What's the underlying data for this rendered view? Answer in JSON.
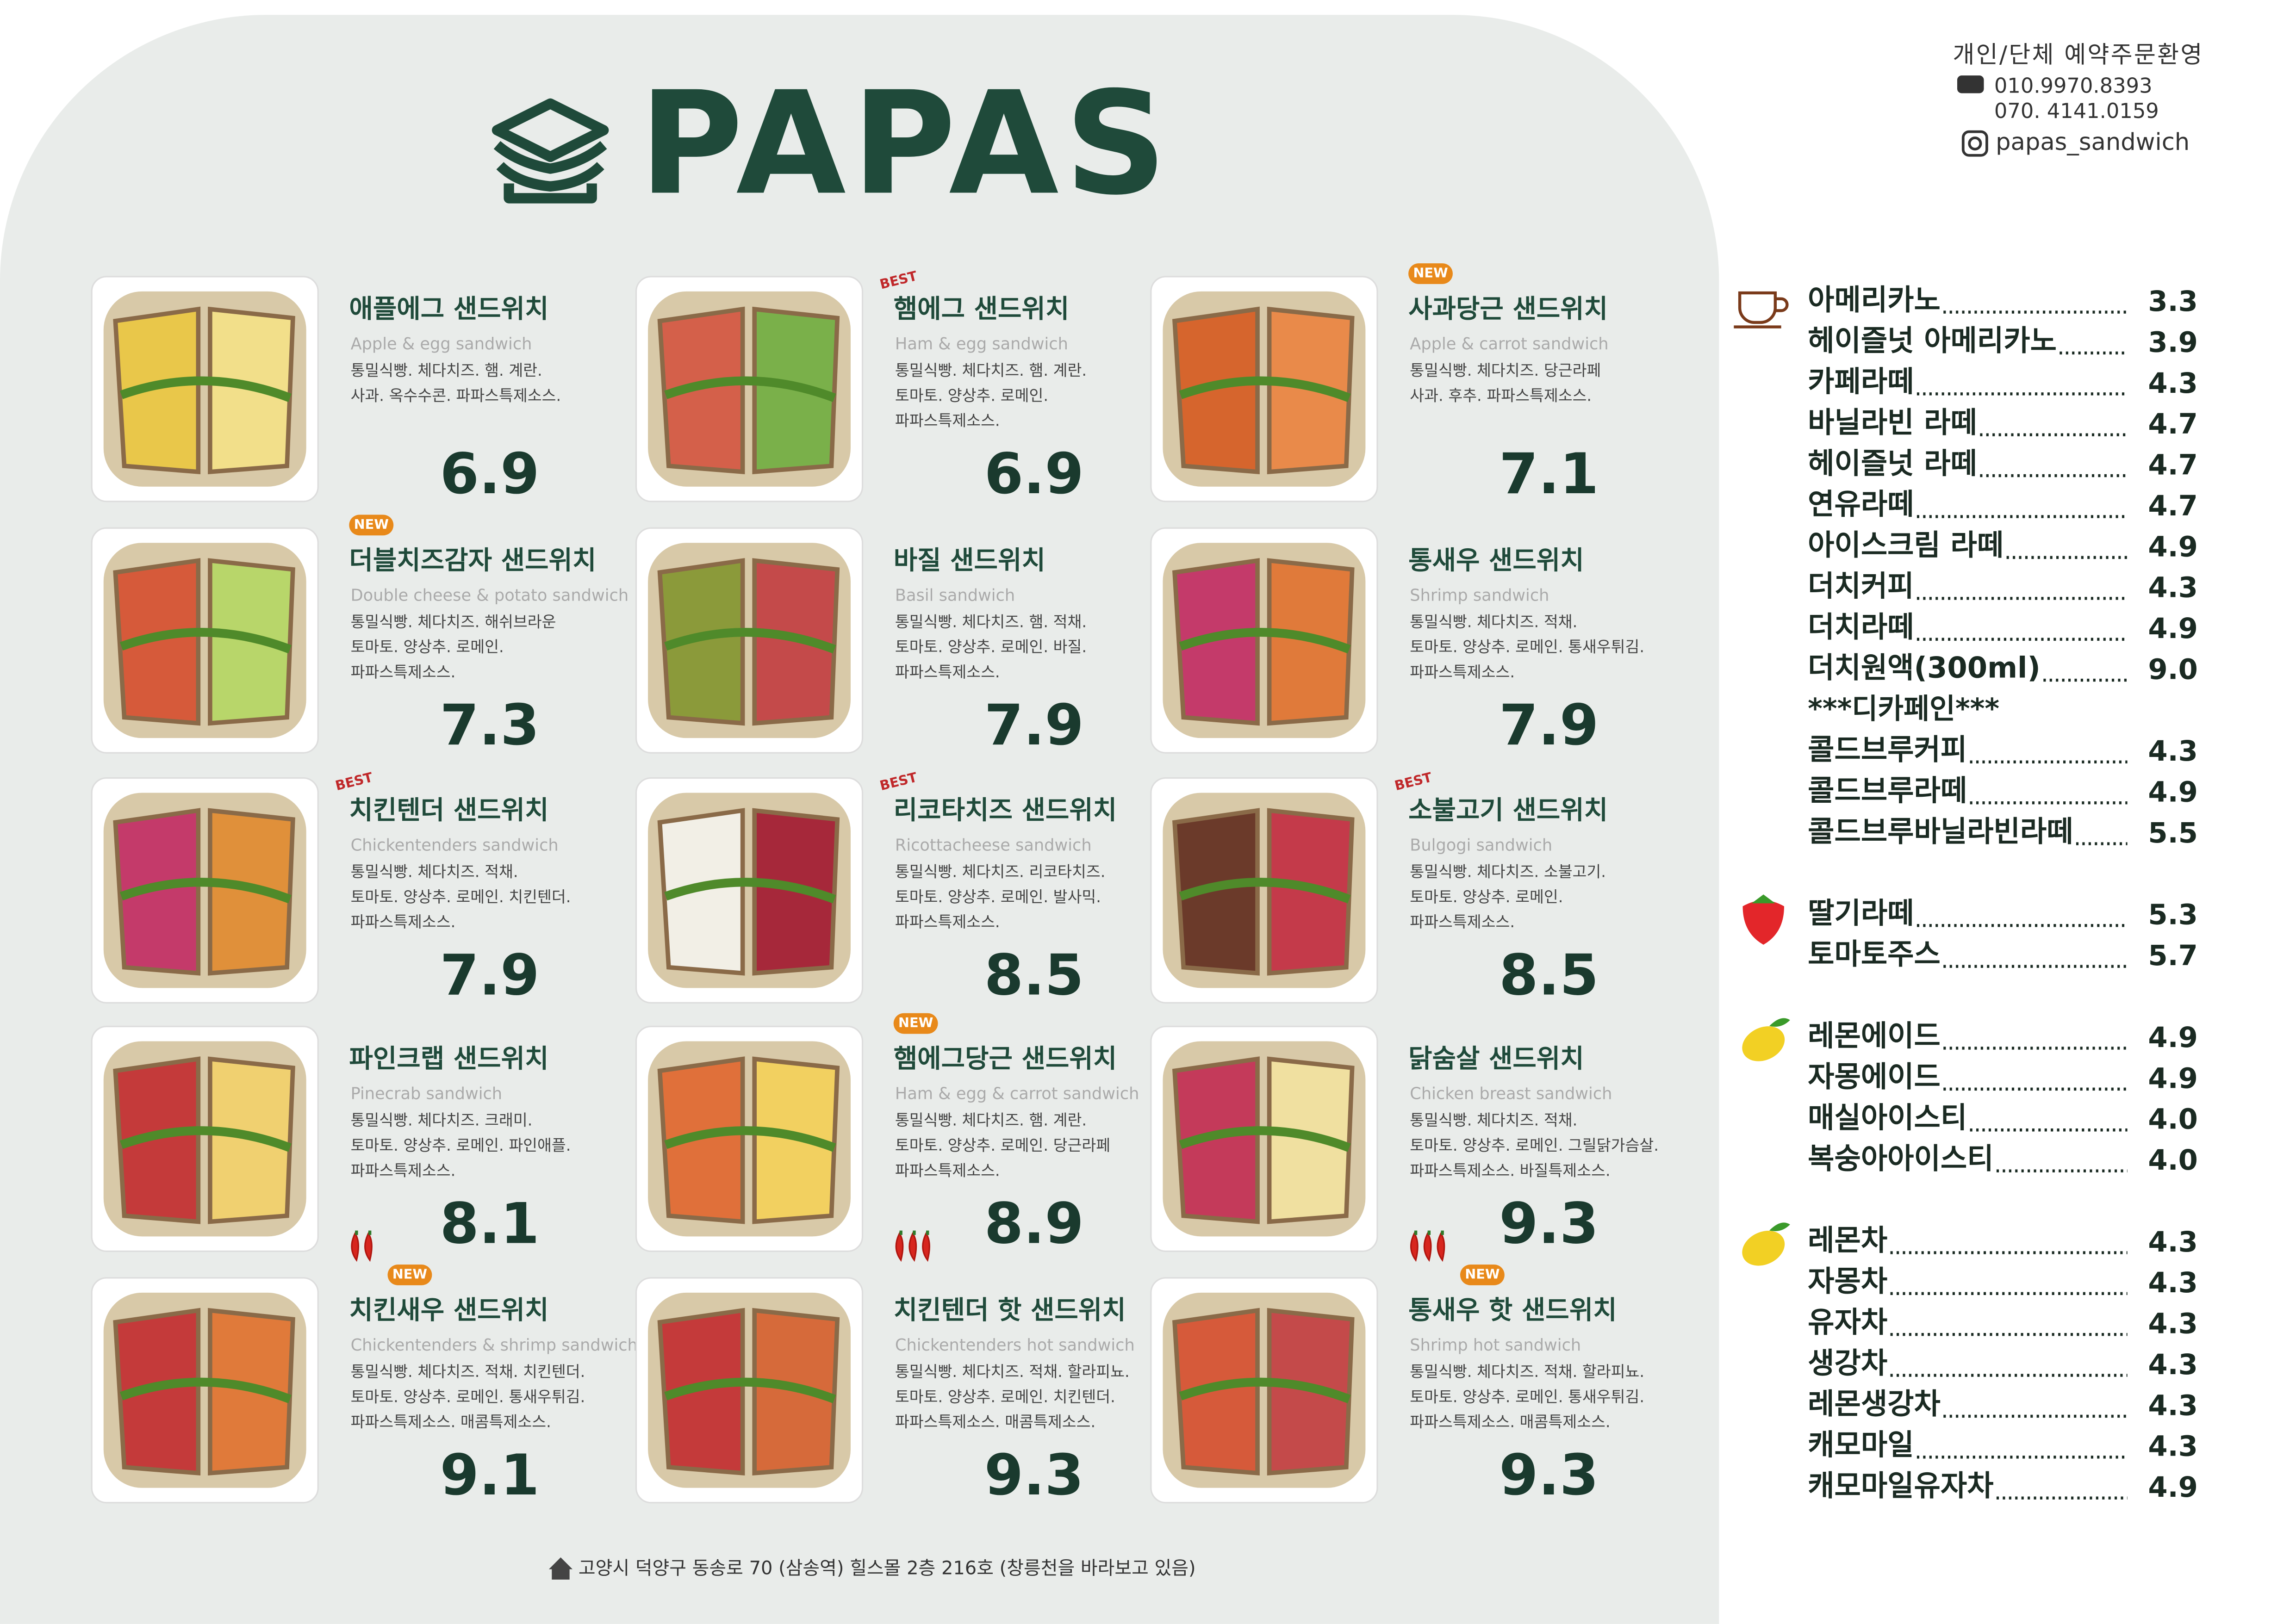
{
  "header": {
    "brand": "PAPAS",
    "contact": {
      "title": "개인/단체 예약주문환영",
      "phones": [
        "010.9970.8393",
        "070. 4141.0159"
      ],
      "instagram": "papas_sandwich"
    }
  },
  "sandwiches": [
    {
      "name": "애플에그 샌드위치",
      "english": "Apple & egg sandwich",
      "ingredients": [
        "통밀식빵. 체다치즈. 햄. 계란.",
        "사과. 옥수수콘. 파파스특제소스."
      ],
      "price": "6.9"
    },
    {
      "badge": "BEST",
      "name": "햄에그 샌드위치",
      "english": "Ham & egg sandwich",
      "ingredients": [
        "통밀식빵. 체다치즈. 햄. 계란.",
        "토마토. 양상추. 로메인.",
        "파파스특제소스."
      ],
      "price": "6.9"
    },
    {
      "badge": "NEW",
      "name": "사과당근 샌드위치",
      "english": "Apple & carrot sandwich",
      "ingredients": [
        "통밀식빵. 체다치즈. 당근라페",
        "사과. 후추. 파파스특제소스."
      ],
      "price": "7.1"
    },
    {
      "badge": "NEW",
      "name": "더블치즈감자 샌드위치",
      "english": "Double cheese & potato sandwich",
      "ingredients": [
        "통밀식빵. 체다치즈. 해쉬브라운",
        "토마토. 양상추. 로메인.",
        "파파스특제소스."
      ],
      "price": "7.3"
    },
    {
      "name": "바질 샌드위치",
      "english": "Basil sandwich",
      "ingredients": [
        "통밀식빵. 체다치즈. 햄. 적채.",
        "토마토. 양상추. 로메인. 바질.",
        "파파스특제소스."
      ],
      "price": "7.9"
    },
    {
      "name": "통새우 샌드위치",
      "english": "Shrimp sandwich",
      "ingredients": [
        "통밀식빵. 체다치즈. 적채.",
        "토마토. 양상추. 로메인. 통새우튀김.",
        "파파스특제소스."
      ],
      "price": "7.9"
    },
    {
      "badge": "BEST",
      "name": "치킨텐더 샌드위치",
      "english": "Chickentenders sandwich",
      "ingredients": [
        "통밀식빵. 체다치즈. 적채.",
        "토마토. 양상추. 로메인. 치킨텐더.",
        "파파스특제소스."
      ],
      "price": "7.9"
    },
    {
      "badge": "BEST",
      "name": "리코타치즈 샌드위치",
      "english": "Ricottacheese sandwich",
      "ingredients": [
        "통밀식빵. 체다치즈. 리코타치즈.",
        "토마토. 양상추. 로메인. 발사믹.",
        "파파스특제소스."
      ],
      "price": "8.5"
    },
    {
      "badge": "BEST",
      "name": "소불고기 샌드위치",
      "english": "Bulgogi sandwich",
      "ingredients": [
        "통밀식빵. 체다치즈. 소불고기.",
        "토마토. 양상추. 로메인.",
        "파파스특제소스."
      ],
      "price": "8.5"
    },
    {
      "name": "파인크랩 샌드위치",
      "english": "Pinecrab sandwich",
      "ingredients": [
        "통밀식빵. 체다치즈. 크래미.",
        "토마토. 양상추. 로메인. 파인애플.",
        "파파스특제소스."
      ],
      "price": "8.1"
    },
    {
      "badge": "NEW",
      "name": "햄에그당근 샌드위치",
      "english": "Ham & egg & carrot sandwich",
      "ingredients": [
        "통밀식빵. 체다치즈. 햄. 계란.",
        "토마토. 양상추. 로메인. 당근라페",
        "파파스특제소스."
      ],
      "price": "8.9"
    },
    {
      "name": "닭숨살 샌드위치",
      "english": "Chicken breast sandwich",
      "ingredients": [
        "통밀식빵. 체다치즈. 적채.",
        "토마토. 양상추. 로메인. 그릴닭가슴살.",
        "파파스특제소스. 바질특제소스."
      ],
      "price": "9.3"
    },
    {
      "chili": 2,
      "badge": "NEW",
      "name": "치킨새우 샌드위치",
      "english": "Chickentenders & shrimp sandwich",
      "ingredients": [
        "통밀식빵. 체다치즈. 적채. 치킨텐더.",
        "토마토. 양상추. 로메인. 통새우튀김.",
        "파파스특제소스. 매콤특제소스."
      ],
      "price": "9.1"
    },
    {
      "chili": 3,
      "name": "치킨텐더 핫 샌드위치",
      "english": "Chickentenders hot sandwich",
      "ingredients": [
        "통밀식빵. 체다치즈. 적채. 할라피뇨.",
        "토마토. 양상추. 로메인. 치킨텐더.",
        "파파스특제소스. 매콤특제소스."
      ],
      "price": "9.3"
    },
    {
      "chili": 3,
      "badge": "NEW",
      "name": "통새우 핫 샌드위치",
      "english": "Shrimp hot sandwich",
      "ingredients": [
        "통밀식빵. 체다치즈. 적채. 할라피뇨.",
        "토마토. 양상추. 로메인. 통새우튀김.",
        "파파스특제소스. 매콤특제소스."
      ],
      "price": "9.3"
    }
  ],
  "drinks": [
    {
      "icon": "coffee",
      "items": [
        {
          "name": "아메리카노",
          "price": "3.3"
        },
        {
          "name": "헤이즐넛 아메리카노",
          "price": "3.9"
        },
        {
          "name": "카페라떼",
          "price": "4.3"
        },
        {
          "name": "바닐라빈 라떼",
          "price": "4.7"
        },
        {
          "name": "헤이즐넛 라떼",
          "price": "4.7"
        },
        {
          "name": "연유라떼",
          "price": "4.7"
        },
        {
          "name": "아이스크림 라떼",
          "price": "4.9"
        },
        {
          "name": "더치커피",
          "price": "4.3"
        },
        {
          "name": "더치라떼",
          "price": "4.9"
        },
        {
          "name": "더치원액(300ml)",
          "price": "9.0"
        },
        {
          "heading": "***디카페인***"
        },
        {
          "name": "콜드브루커피",
          "price": "4.3"
        },
        {
          "name": "콜드브루라떼",
          "price": "4.9"
        },
        {
          "name": "콜드브루바닐라빈라떼",
          "price": "5.5"
        }
      ]
    },
    {
      "icon": "strawberry",
      "items": [
        {
          "name": "딸기라떼",
          "price": "5.3"
        },
        {
          "name": "토마토주스",
          "price": "5.7"
        }
      ]
    },
    {
      "icon": "lemon",
      "items": [
        {
          "name": "레몬에이드",
          "price": "4.9"
        },
        {
          "name": "자몽에이드",
          "price": "4.9"
        },
        {
          "name": "매실아이스티",
          "price": "4.0"
        },
        {
          "name": "복숭아아이스티",
          "price": "4.0"
        }
      ]
    },
    {
      "icon": "lemon",
      "items": [
        {
          "name": "레몬차",
          "price": "4.3"
        },
        {
          "name": "자몽차",
          "price": "4.3"
        },
        {
          "name": "유자차",
          "price": "4.3"
        },
        {
          "name": "생강차",
          "price": "4.3"
        },
        {
          "name": "레몬생강차",
          "price": "4.3"
        },
        {
          "name": "캐모마일",
          "price": "4.3"
        },
        {
          "name": "캐모마일유자차",
          "price": "4.9"
        }
      ]
    }
  ],
  "footer": {
    "address": "고양시 덕양구 동송로 70 (삼송역) 힐스몰 2층 216호 (창릉천을 바라보고 있음)"
  }
}
